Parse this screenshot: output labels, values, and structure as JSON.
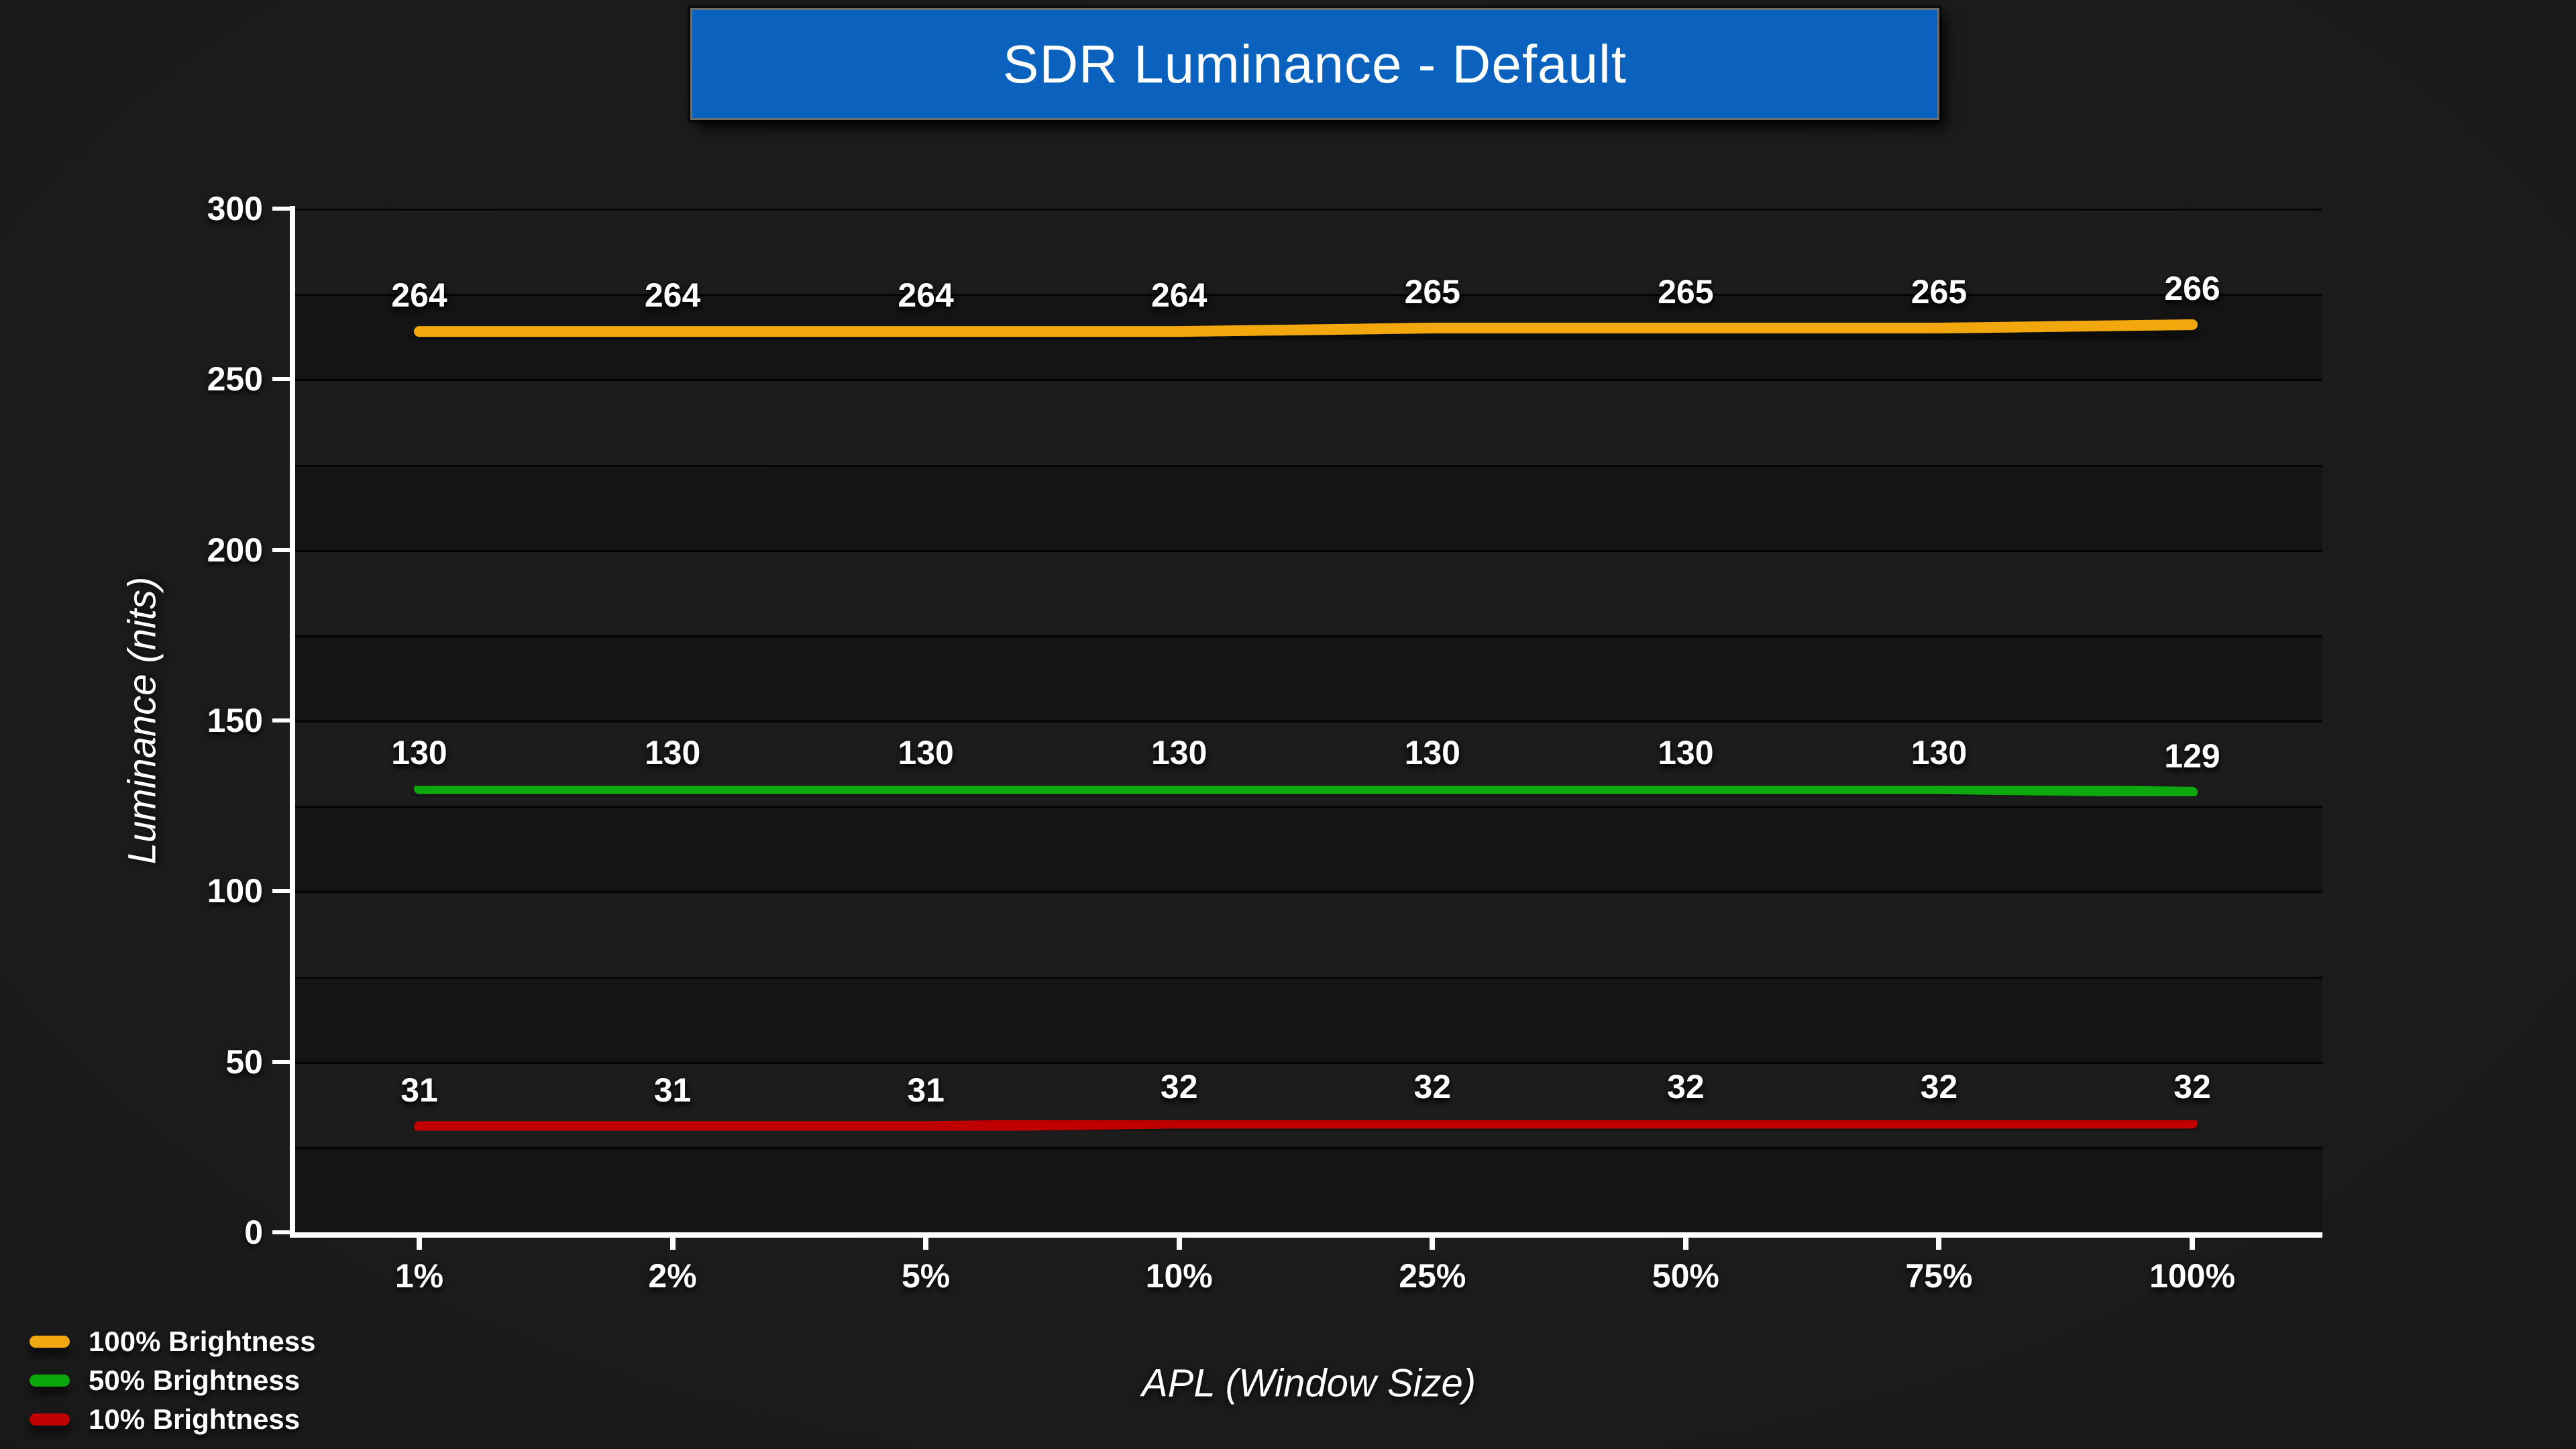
{
  "title": {
    "text": "SDR Luminance - Default",
    "bg_color": "#0B62BE"
  },
  "chart_data": {
    "type": "line",
    "title": "SDR Luminance - Default",
    "xlabel": "APL (Window Size)",
    "ylabel": "Luminance (nits)",
    "categories": [
      "1%",
      "2%",
      "5%",
      "10%",
      "25%",
      "50%",
      "75%",
      "100%"
    ],
    "series": [
      {
        "name": "100% Brightness",
        "color": "#F2A810",
        "values": [
          264,
          264,
          264,
          264,
          265,
          265,
          265,
          266
        ]
      },
      {
        "name": "50% Brightness",
        "color": "#0BA80B",
        "values": [
          130,
          130,
          130,
          130,
          130,
          130,
          130,
          129
        ]
      },
      {
        "name": "10% Brightness",
        "color": "#C00000",
        "values": [
          31,
          31,
          31,
          32,
          32,
          32,
          32,
          32
        ]
      }
    ],
    "ylim": [
      0,
      300
    ],
    "y_major_ticks": [
      0,
      50,
      100,
      150,
      200,
      250,
      300
    ],
    "y_minor_step": 25,
    "grid": "horizontal-minor-banded",
    "band_colors": [
      "#1C1C1C",
      "#141414"
    ],
    "gridline_color": "#040404",
    "axis_color": "#FFFFFF",
    "data_labels": true,
    "legend_position": "bottom-left"
  }
}
